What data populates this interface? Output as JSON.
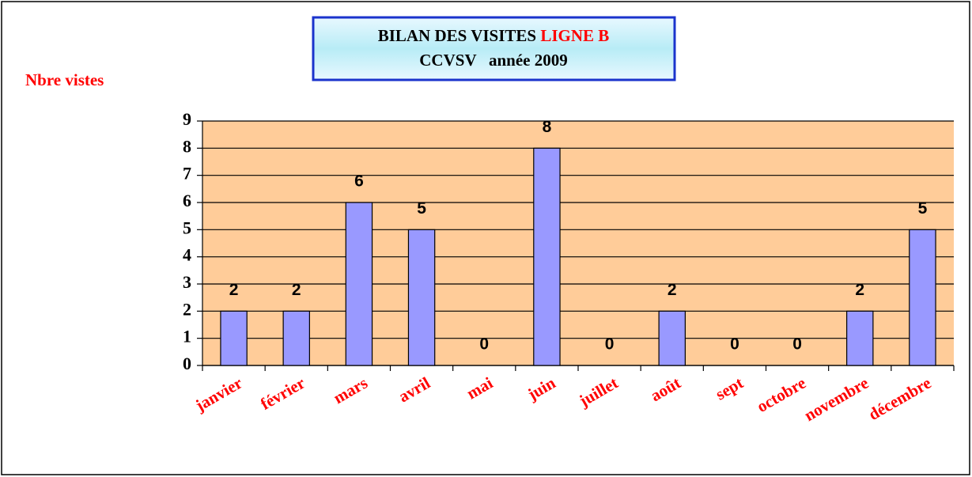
{
  "chart_data": {
    "type": "bar",
    "title": "BILAN DES VISITES",
    "title_highlight": "LIGNE B",
    "subtitle": "CCVSV   année 2009",
    "y_label": "Nbre vistes",
    "categories": [
      "janvier",
      "février",
      "mars",
      "avril",
      "mai",
      "juin",
      "juillet",
      "août",
      "sept",
      "octobre",
      "novembre",
      "décembre"
    ],
    "values": [
      2,
      2,
      6,
      5,
      0,
      8,
      0,
      2,
      0,
      0,
      2,
      5
    ],
    "color": "#9999ff",
    "plot_background": "#ffcc99",
    "ylim": [
      0,
      9
    ],
    "yticks": [
      0,
      1,
      2,
      3,
      4,
      5,
      6,
      7,
      8,
      9
    ],
    "grid": true
  }
}
